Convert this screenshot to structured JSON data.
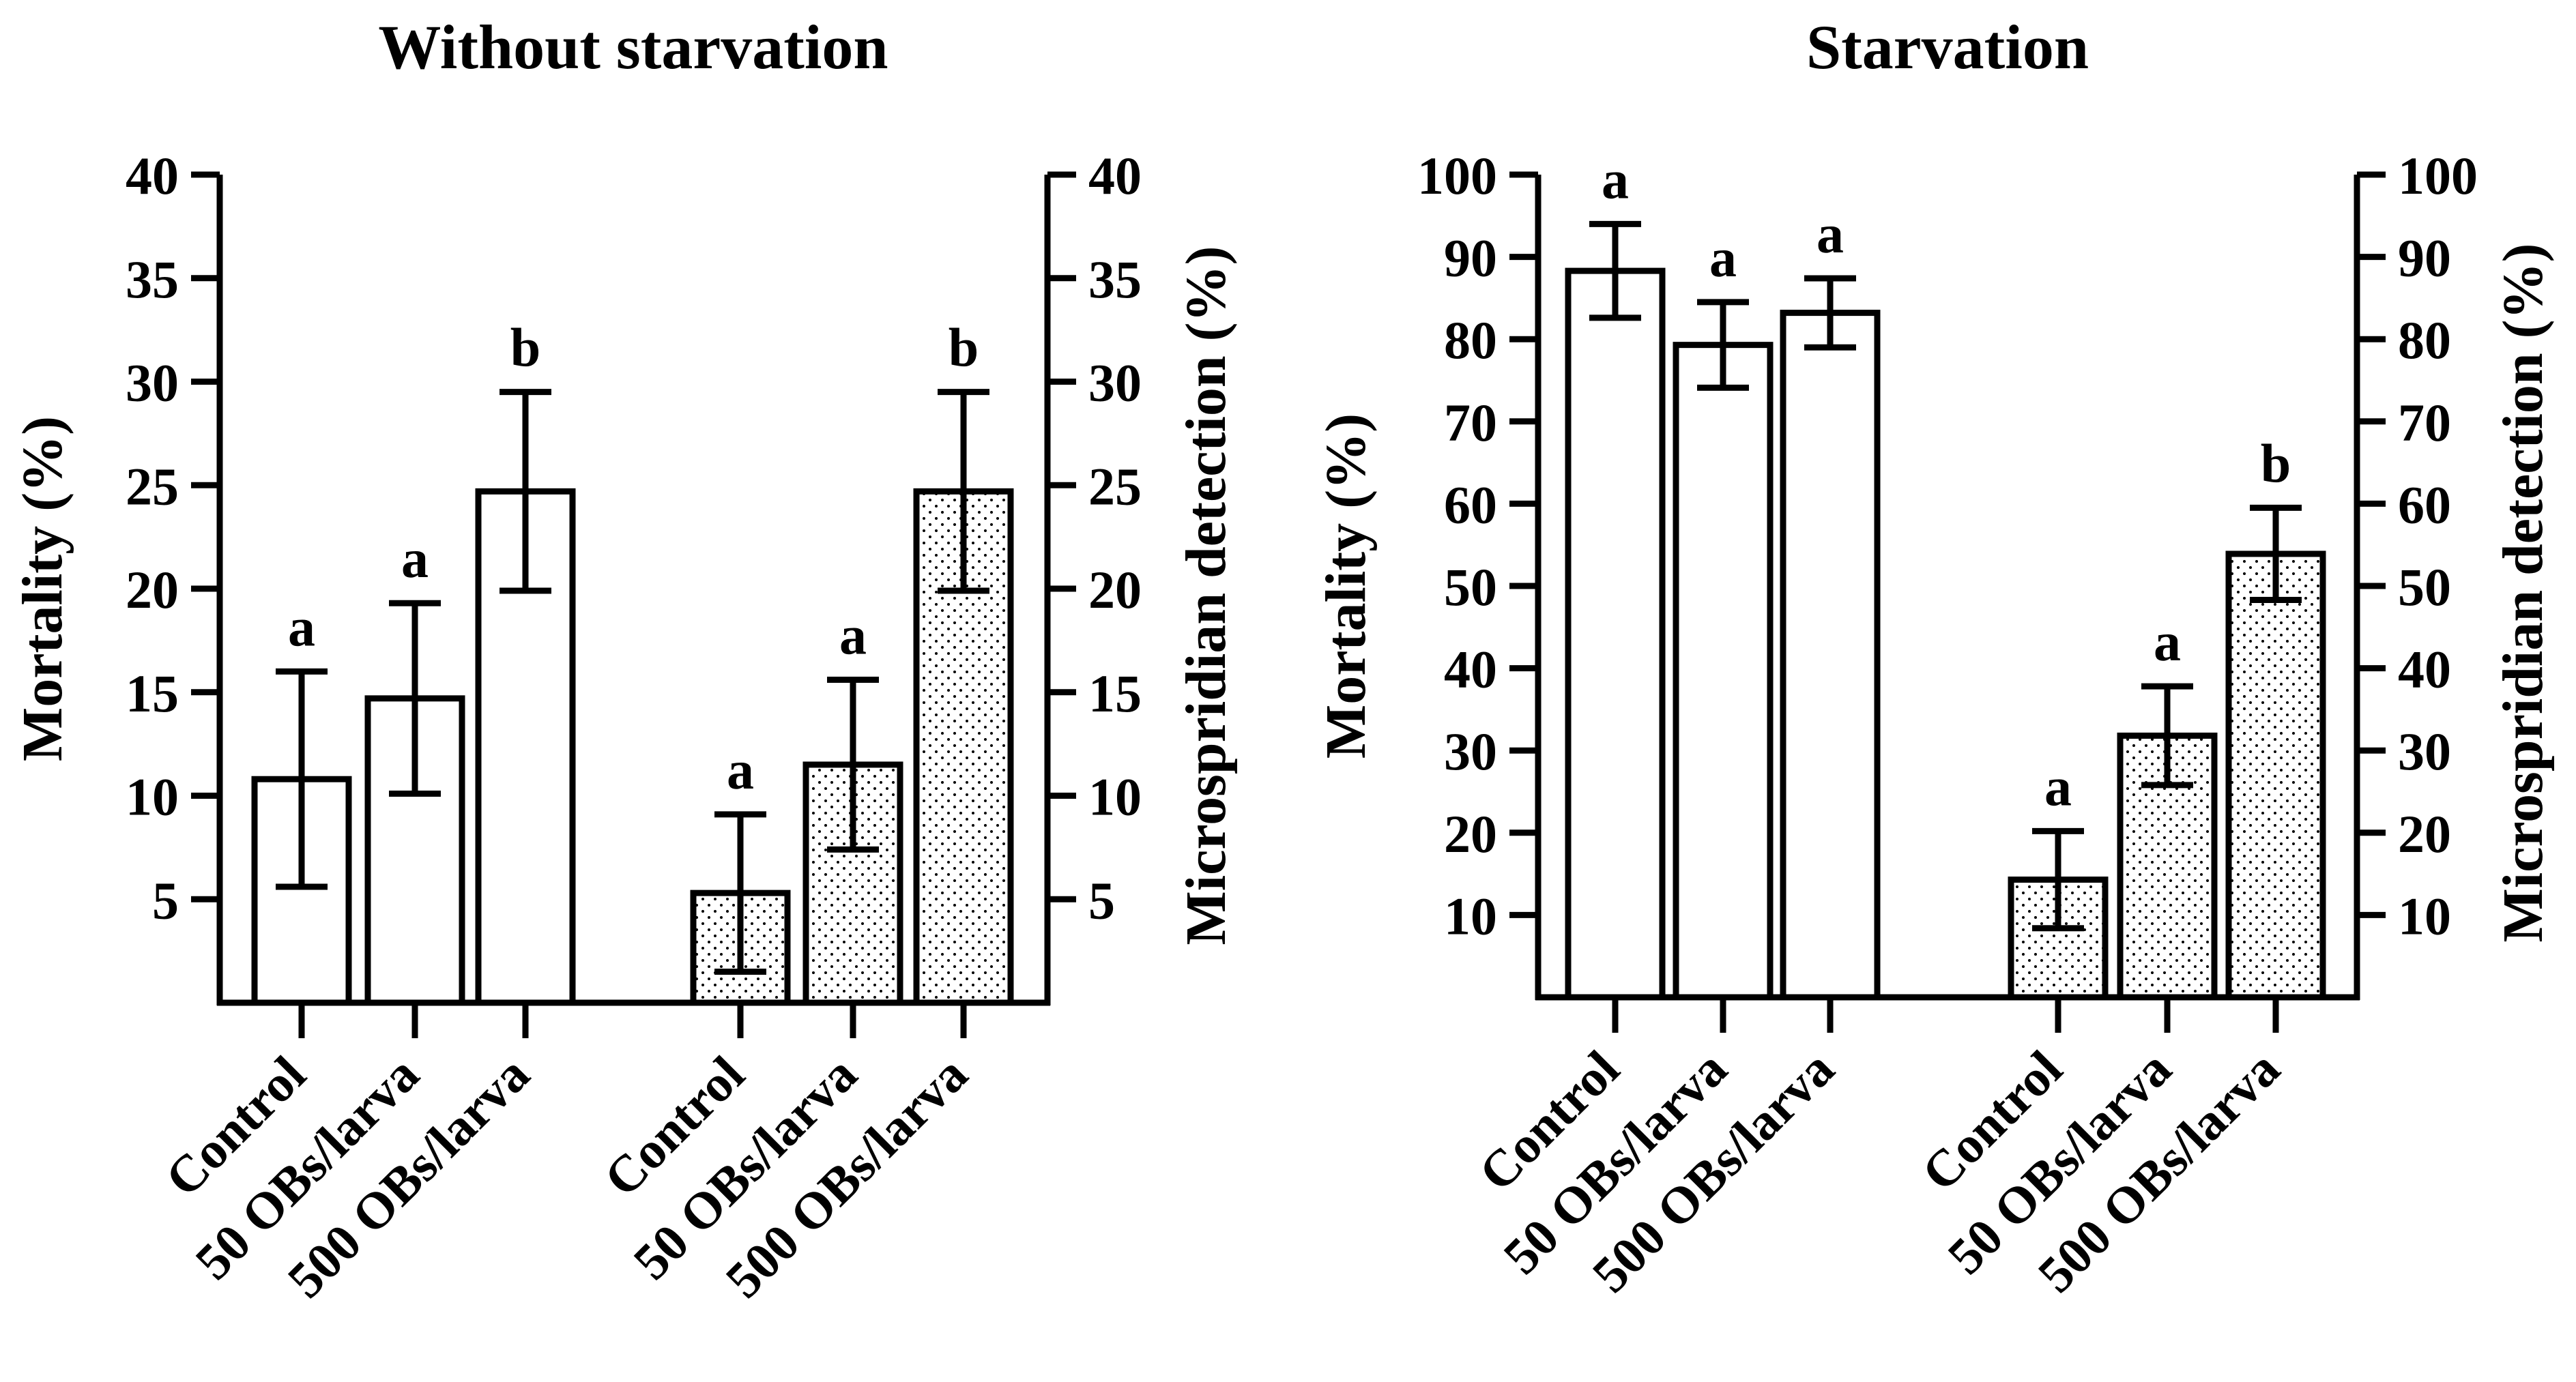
{
  "chart_data": [
    {
      "type": "bar",
      "title": "Without starvation",
      "left_axis": {
        "label": "Mortality (%)",
        "ylim": [
          0,
          40
        ],
        "ticks": [
          5,
          10,
          15,
          20,
          25,
          30,
          35,
          40
        ]
      },
      "right_axis": {
        "label": "Microspridian detection (%)",
        "ylim": [
          0,
          40
        ],
        "ticks": [
          5,
          10,
          15,
          20,
          25,
          30,
          35,
          40
        ]
      },
      "groups": [
        {
          "name": "Mortality",
          "axis": "left",
          "fill": "open",
          "categories": [
            "Control",
            "50 OBs/larva",
            "500 OBs/larva"
          ],
          "values": [
            10.8,
            14.7,
            24.7
          ],
          "errors": [
            5.2,
            4.6,
            4.8
          ],
          "letters": [
            "a",
            "a",
            "b"
          ]
        },
        {
          "name": "Microspridian detection",
          "axis": "right",
          "fill": "dotted",
          "categories": [
            "Control",
            "50 OBs/larva",
            "500 OBs/larva"
          ],
          "values": [
            5.3,
            11.5,
            24.7
          ],
          "errors": [
            3.8,
            4.1,
            4.8
          ],
          "letters": [
            "a",
            "a",
            "b"
          ]
        }
      ]
    },
    {
      "type": "bar",
      "title": "Starvation",
      "left_axis": {
        "label": "Mortality (%)",
        "ylim": [
          0,
          100
        ],
        "ticks": [
          10,
          20,
          30,
          40,
          50,
          60,
          70,
          80,
          90,
          100
        ]
      },
      "right_axis": {
        "label": "Microspridian detection (%)",
        "ylim": [
          0,
          100
        ],
        "ticks": [
          10,
          20,
          30,
          40,
          50,
          60,
          70,
          80,
          90,
          100
        ]
      },
      "groups": [
        {
          "name": "Mortality",
          "axis": "left",
          "fill": "open",
          "categories": [
            "Control",
            "50 OBs/larva",
            "500 OBs/larva"
          ],
          "values": [
            88.3,
            79.3,
            83.2
          ],
          "errors": [
            5.7,
            5.2,
            4.2
          ],
          "letters": [
            "a",
            "a",
            "a"
          ]
        },
        {
          "name": "Microspridian detection",
          "axis": "right",
          "fill": "dotted",
          "categories": [
            "Control",
            "50 OBs/larva",
            "500 OBs/larva"
          ],
          "values": [
            14.3,
            31.8,
            53.9
          ],
          "errors": [
            5.9,
            6.0,
            5.6
          ],
          "letters": [
            "a",
            "a",
            "b"
          ]
        }
      ]
    }
  ]
}
